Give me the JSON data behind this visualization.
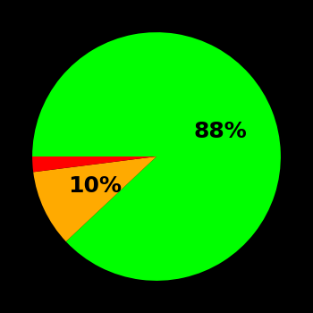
{
  "slices": [
    88,
    10,
    2
  ],
  "colors": [
    "#00ff00",
    "#ffaa00",
    "#ff0000"
  ],
  "background_color": "#000000",
  "label_fontsize": 18,
  "label_fontweight": "bold",
  "startangle": 180,
  "counterclock": false,
  "figsize": [
    3.5,
    3.5
  ],
  "dpi": 100,
  "green_label": "88%",
  "yellow_label": "10%",
  "green_label_r": 0.55,
  "yellow_label_r": 0.55
}
